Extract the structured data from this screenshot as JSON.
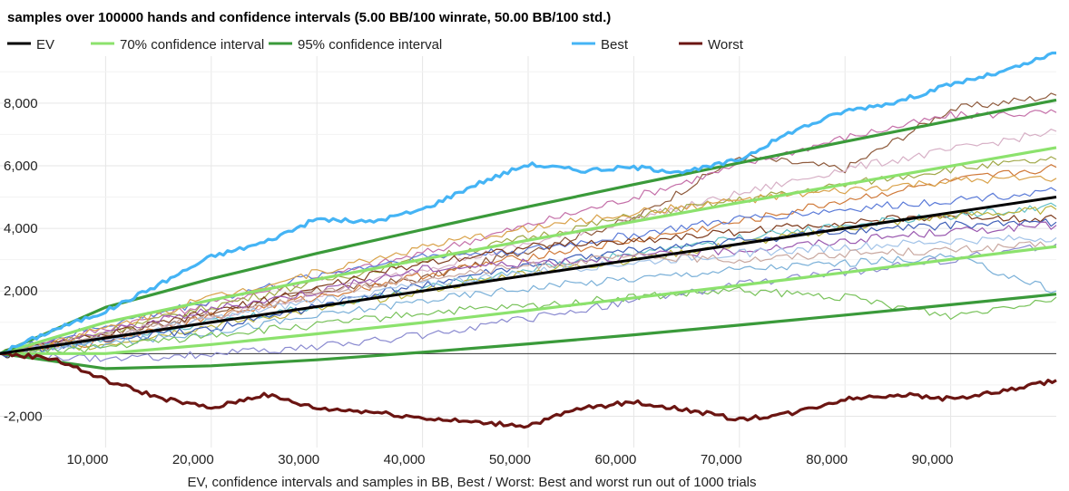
{
  "chart_data": {
    "type": "line",
    "title": "samples over 100000 hands and confidence intervals (5.00 BB/100 winrate, 50.00 BB/100 std.)",
    "xlabel": "EV, confidence intervals and samples in BB, Best / Worst: Best and worst run out of 1000 trials",
    "ylabel": "",
    "xlim": [
      0,
      100000
    ],
    "ylim": [
      -3000,
      9500
    ],
    "grid": true,
    "legend_position": "top",
    "x_ticks": [
      "10,000",
      "20,000",
      "30,000",
      "40,000",
      "50,000",
      "60,000",
      "70,000",
      "80,000",
      "90,000"
    ],
    "x_tick_values": [
      10000,
      20000,
      30000,
      40000,
      50000,
      60000,
      70000,
      80000,
      90000
    ],
    "y_ticks": [
      "-2,000",
      "0",
      "2,000",
      "4,000",
      "6,000",
      "8,000"
    ],
    "y_tick_values": [
      -2000,
      0,
      2000,
      4000,
      6000,
      8000
    ],
    "series": [
      {
        "name": "EV",
        "color": "#000000",
        "kind": "ev",
        "x": [
          0,
          100000
        ],
        "y": [
          0,
          5000
        ]
      },
      {
        "name": "70% confidence interval",
        "color": "#8ce26d",
        "kind": "ci70",
        "x": [
          0,
          10000,
          20000,
          30000,
          40000,
          50000,
          60000,
          70000,
          80000,
          90000,
          100000
        ],
        "y_upper": [
          0,
          1000,
          1710,
          2370,
          3010,
          3620,
          4220,
          4820,
          5410,
          5990,
          6580
        ],
        "y_lower": [
          0,
          0,
          290,
          630,
          990,
          1380,
          1780,
          2180,
          2590,
          3010,
          3420
        ]
      },
      {
        "name": "95% confidence interval",
        "color": "#3a9a3a",
        "kind": "ci95",
        "x": [
          0,
          10000,
          20000,
          30000,
          40000,
          50000,
          60000,
          70000,
          80000,
          90000,
          100000
        ],
        "y_upper": [
          0,
          1480,
          2390,
          3200,
          3960,
          4690,
          5400,
          6090,
          6770,
          7440,
          8100
        ],
        "y_lower": [
          0,
          -480,
          -390,
          -200,
          40,
          310,
          600,
          910,
          1230,
          1560,
          1900
        ]
      },
      {
        "name": "Best",
        "color": "#45b4f5",
        "kind": "best",
        "x": [
          0,
          5000,
          10000,
          15000,
          20000,
          25000,
          30000,
          35000,
          40000,
          45000,
          50000,
          55000,
          60000,
          65000,
          70000,
          75000,
          80000,
          85000,
          90000,
          95000,
          100000
        ],
        "y": [
          0,
          750,
          1350,
          2200,
          3100,
          3550,
          4300,
          4200,
          4600,
          5400,
          6050,
          5850,
          5950,
          5800,
          6200,
          7100,
          7750,
          8050,
          8600,
          9000,
          9600
        ]
      },
      {
        "name": "Worst",
        "color": "#6b1512",
        "kind": "worst",
        "x": [
          0,
          5000,
          10000,
          15000,
          20000,
          25000,
          30000,
          35000,
          40000,
          45000,
          50000,
          55000,
          60000,
          65000,
          70000,
          75000,
          80000,
          85000,
          90000,
          95000,
          100000
        ],
        "y": [
          0,
          -150,
          -850,
          -1400,
          -1750,
          -1300,
          -1750,
          -1850,
          -2050,
          -2200,
          -2300,
          -1750,
          -1550,
          -1800,
          -2100,
          -1900,
          -1450,
          -1300,
          -1450,
          -1200,
          -850
        ]
      },
      {
        "color": "#8e5a3c",
        "kind": "sample",
        "x": [
          0,
          10000,
          20000,
          30000,
          40000,
          50000,
          60000,
          70000,
          80000,
          90000,
          100000
        ],
        "y": [
          0,
          600,
          1300,
          2000,
          2400,
          3300,
          4300,
          6300,
          5900,
          7800,
          8250
        ]
      },
      {
        "color": "#c46fa8",
        "kind": "sample",
        "x": [
          0,
          10000,
          20000,
          30000,
          40000,
          50000,
          60000,
          70000,
          80000,
          90000,
          100000
        ],
        "y": [
          0,
          800,
          1600,
          2400,
          3200,
          4100,
          5000,
          6000,
          6900,
          7600,
          7700
        ]
      },
      {
        "color": "#d7b0c6",
        "kind": "sample",
        "x": [
          0,
          10000,
          20000,
          30000,
          40000,
          50000,
          60000,
          70000,
          80000,
          90000,
          100000
        ],
        "y": [
          0,
          500,
          1100,
          1900,
          2700,
          3500,
          4300,
          5100,
          5900,
          6500,
          7100
        ]
      },
      {
        "color": "#a0a848",
        "kind": "sample",
        "x": [
          0,
          10000,
          20000,
          30000,
          40000,
          50000,
          60000,
          70000,
          80000,
          90000,
          100000
        ],
        "y": [
          0,
          700,
          1500,
          2300,
          3000,
          3700,
          4400,
          4900,
          5400,
          5900,
          6200
        ]
      },
      {
        "color": "#d07a3a",
        "kind": "sample",
        "x": [
          0,
          10000,
          20000,
          30000,
          40000,
          50000,
          60000,
          70000,
          80000,
          90000,
          100000
        ],
        "y": [
          0,
          400,
          1200,
          1800,
          2500,
          3100,
          3600,
          4200,
          4900,
          5500,
          5950
        ]
      },
      {
        "color": "#5a7ad8",
        "kind": "sample",
        "x": [
          0,
          10000,
          20000,
          30000,
          40000,
          50000,
          60000,
          70000,
          80000,
          90000,
          100000
        ],
        "y": [
          0,
          900,
          1700,
          2500,
          3100,
          3300,
          3800,
          4300,
          4600,
          4900,
          5200
        ]
      },
      {
        "color": "#7d3a1c",
        "kind": "sample",
        "x": [
          0,
          10000,
          20000,
          30000,
          40000,
          50000,
          60000,
          70000,
          80000,
          90000,
          100000
        ],
        "y": [
          0,
          600,
          1300,
          2100,
          2900,
          3400,
          3600,
          3900,
          4200,
          4400,
          4300
        ]
      },
      {
        "color": "#63c0c6",
        "kind": "sample",
        "x": [
          0,
          10000,
          20000,
          30000,
          40000,
          50000,
          60000,
          70000,
          80000,
          90000,
          100000
        ],
        "y": [
          0,
          500,
          1000,
          1500,
          2100,
          2700,
          3200,
          3700,
          4100,
          4400,
          4700
        ]
      },
      {
        "color": "#b9b23c",
        "kind": "sample",
        "x": [
          0,
          10000,
          20000,
          30000,
          40000,
          50000,
          60000,
          70000,
          80000,
          90000,
          100000
        ],
        "y": [
          0,
          300,
          900,
          1400,
          2000,
          2600,
          3000,
          3500,
          4000,
          4400,
          4600
        ]
      },
      {
        "color": "#3f5fb8",
        "kind": "sample",
        "x": [
          0,
          10000,
          20000,
          30000,
          40000,
          50000,
          60000,
          70000,
          80000,
          90000,
          100000
        ],
        "y": [
          0,
          400,
          800,
          1500,
          2200,
          2800,
          3300,
          3600,
          3900,
          4100,
          4200
        ]
      },
      {
        "color": "#9b5ab0",
        "kind": "sample",
        "x": [
          0,
          10000,
          20000,
          30000,
          40000,
          50000,
          60000,
          70000,
          80000,
          90000,
          100000
        ],
        "y": [
          0,
          700,
          1400,
          2000,
          2700,
          2900,
          3100,
          3300,
          3600,
          3900,
          4100
        ]
      },
      {
        "color": "#a2c3e8",
        "kind": "sample",
        "x": [
          0,
          10000,
          20000,
          30000,
          40000,
          50000,
          60000,
          70000,
          80000,
          90000,
          100000
        ],
        "y": [
          0,
          500,
          1100,
          1700,
          2200,
          2600,
          2900,
          3200,
          3400,
          3600,
          3700
        ]
      },
      {
        "color": "#7ab0d8",
        "kind": "sample",
        "x": [
          0,
          10000,
          20000,
          30000,
          40000,
          50000,
          60000,
          70000,
          80000,
          90000,
          100000
        ],
        "y": [
          0,
          300,
          700,
          1200,
          1700,
          2100,
          2400,
          2700,
          2900,
          3100,
          2000
        ]
      },
      {
        "color": "#78c25a",
        "kind": "sample",
        "x": [
          0,
          10000,
          20000,
          30000,
          40000,
          50000,
          60000,
          70000,
          80000,
          90000,
          100000
        ],
        "y": [
          0,
          200,
          600,
          900,
          1300,
          1500,
          1800,
          2000,
          1800,
          1200,
          1800
        ]
      },
      {
        "color": "#c9a8a0",
        "kind": "sample",
        "x": [
          0,
          10000,
          20000,
          30000,
          40000,
          50000,
          60000,
          70000,
          80000,
          90000,
          100000
        ],
        "y": [
          0,
          600,
          1200,
          1900,
          2400,
          2800,
          3100,
          3000,
          3200,
          3300,
          3500
        ]
      },
      {
        "color": "#8a8ad0",
        "kind": "sample",
        "x": [
          0,
          10000,
          20000,
          30000,
          40000,
          50000,
          60000,
          70000,
          80000,
          90000,
          100000
        ],
        "y": [
          0,
          -200,
          0,
          200,
          600,
          1100,
          1700,
          2200,
          2600,
          3000,
          3500
        ]
      },
      {
        "color": "#d9a24a",
        "kind": "sample",
        "x": [
          0,
          10000,
          20000,
          30000,
          40000,
          50000,
          60000,
          70000,
          80000,
          90000,
          100000
        ],
        "y": [
          0,
          800,
          1800,
          2600,
          3400,
          4000,
          4500,
          4900,
          5200,
          5500,
          5600
        ]
      }
    ]
  }
}
